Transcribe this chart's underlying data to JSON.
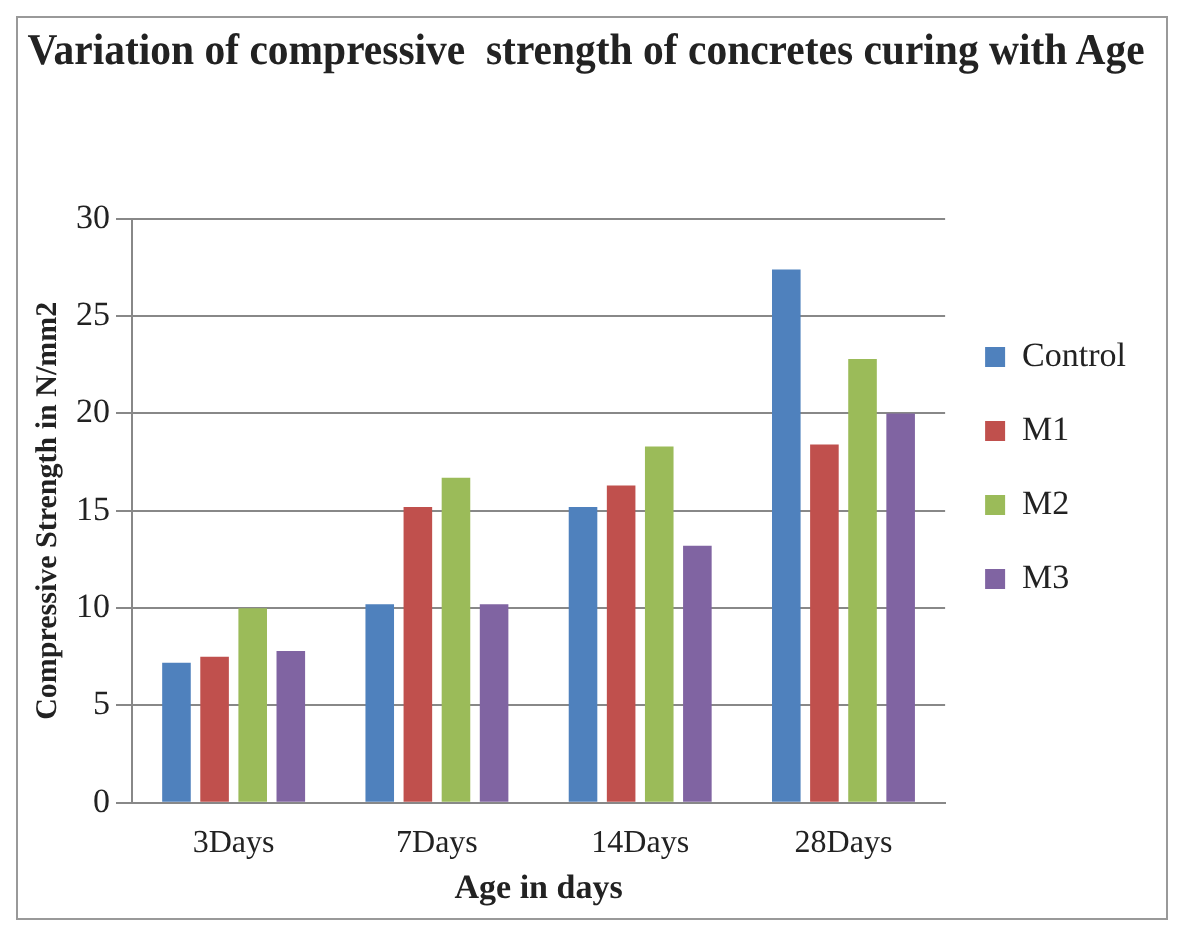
{
  "chart_data": {
    "type": "bar",
    "title": "Variation of compressive  strength of concretes curing with Age",
    "xlabel": "Age in days",
    "ylabel": "Compressive Strength in N/mm2",
    "categories": [
      "3Days",
      "7Days",
      "14Days",
      "28Days"
    ],
    "series": [
      {
        "name": "Control",
        "color": "#4f81bd",
        "values": [
          7.2,
          10.2,
          15.2,
          27.4
        ]
      },
      {
        "name": "M1",
        "color": "#c0504d",
        "values": [
          7.5,
          15.2,
          16.3,
          18.4
        ]
      },
      {
        "name": "M2",
        "color": "#9bbb59",
        "values": [
          10,
          16.7,
          18.3,
          22.8
        ]
      },
      {
        "name": "M3",
        "color": "#8064a2",
        "values": [
          7.8,
          10.2,
          13.2,
          20
        ]
      }
    ],
    "ylim": [
      0,
      30
    ],
    "yticks": [
      0,
      5,
      10,
      15,
      20,
      25,
      30
    ],
    "grid": "y",
    "legend": "right"
  }
}
